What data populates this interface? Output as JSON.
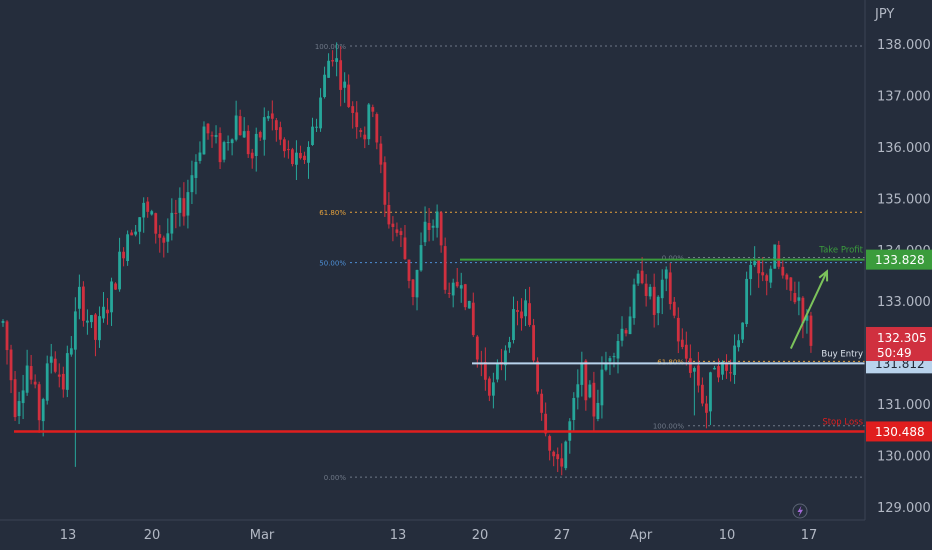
{
  "currency_label": "JPY",
  "colors": {
    "background": "#252d3c",
    "bull": "#26a69a",
    "bear": "#d0303f",
    "green_line": "#3b9c3c",
    "red_line": "#e01e1e",
    "blue_line": "#b9d3ec",
    "fib_orange": "#e6a23c",
    "fib_grey": "#6f7887",
    "fib_blue": "#4d8fd6",
    "arrow": "#7cc35b"
  },
  "chart_data": {
    "type": "candlestick",
    "ylim": [
      128.8,
      138.6
    ],
    "y_ticks": [
      "138.000",
      "137.000",
      "136.000",
      "135.000",
      "134.000",
      "133.000",
      "131.000",
      "130.000",
      "129.000"
    ],
    "x_ticks": [
      "13",
      "20",
      "Mar",
      "13",
      "20",
      "27",
      "Apr",
      "10",
      "17"
    ],
    "trend_path": [
      [
        0,
        132.6
      ],
      [
        3,
        131.0
      ],
      [
        6,
        131.8
      ],
      [
        9,
        130.8
      ],
      [
        12,
        132.0
      ],
      [
        15,
        131.4
      ],
      [
        19,
        133.1
      ],
      [
        23,
        132.3
      ],
      [
        27,
        133.2
      ],
      [
        31,
        134.4
      ],
      [
        35,
        134.8
      ],
      [
        40,
        134.2
      ],
      [
        45,
        134.9
      ],
      [
        50,
        136.4
      ],
      [
        54,
        135.9
      ],
      [
        58,
        136.6
      ],
      [
        62,
        135.8
      ],
      [
        66,
        136.7
      ],
      [
        70,
        135.9
      ],
      [
        74,
        135.6
      ],
      [
        78,
        136.6
      ],
      [
        81,
        137.7
      ],
      [
        82,
        137.9
      ],
      [
        86,
        136.9
      ],
      [
        90,
        136.3
      ],
      [
        92,
        136.9
      ],
      [
        95,
        134.8
      ],
      [
        99,
        134.2
      ],
      [
        102,
        133.2
      ],
      [
        105,
        134.4
      ],
      [
        108,
        134.6
      ],
      [
        111,
        132.9
      ],
      [
        114,
        133.6
      ],
      [
        118,
        131.9
      ],
      [
        122,
        131.3
      ],
      [
        126,
        132.5
      ],
      [
        130,
        132.9
      ],
      [
        133,
        131.4
      ],
      [
        136,
        130.3
      ],
      [
        138,
        129.7
      ],
      [
        141,
        130.6
      ],
      [
        144,
        131.6
      ],
      [
        147,
        130.9
      ],
      [
        151,
        132.1
      ],
      [
        155,
        132.6
      ],
      [
        159,
        133.6
      ],
      [
        162,
        132.8
      ],
      [
        165,
        133.4
      ],
      [
        169,
        132.0
      ],
      [
        172,
        131.7
      ],
      [
        175,
        130.9
      ],
      [
        177,
        131.9
      ],
      [
        180,
        131.6
      ],
      [
        183,
        132.4
      ],
      [
        186,
        133.6
      ],
      [
        189,
        133.4
      ],
      [
        192,
        133.9
      ],
      [
        195,
        133.2
      ],
      [
        198,
        133.1
      ],
      [
        201,
        132.3
      ]
    ],
    "extra_lows": [
      [
        18,
        129.8
      ],
      [
        138,
        129.7
      ],
      [
        172,
        130.8
      ]
    ],
    "extra_highs": [
      [
        82,
        137.9
      ],
      [
        108,
        134.9
      ],
      [
        192,
        134.0
      ]
    ],
    "levels": [
      {
        "name": "take_profit",
        "label": "Take Profit",
        "value": 133.828,
        "tag": "133.828"
      },
      {
        "name": "buy_entry",
        "label": "Buy Entry",
        "value": 131.812,
        "tag": "131.812"
      },
      {
        "name": "stop_loss",
        "label": "Stop Loss",
        "value": 130.488,
        "tag": "130.488"
      }
    ],
    "fib_left": [
      {
        "label": "100.00%",
        "value": 137.98
      },
      {
        "label": "61.80%",
        "value": 134.75
      },
      {
        "label": "50.00%",
        "value": 133.77
      },
      {
        "label": "0.00%",
        "value": 129.6
      }
    ],
    "fib_right": [
      {
        "label": "0.00%",
        "value": 133.87
      },
      {
        "label": "61.80%",
        "value": 131.85
      },
      {
        "label": "100.00%",
        "value": 130.6
      }
    ],
    "current_price": {
      "value": 132.305,
      "label": "132.305",
      "countdown": "50:49"
    },
    "arrow": {
      "from": [
        196,
        132.1
      ],
      "to": [
        203,
        133.6
      ]
    },
    "grid": false
  }
}
